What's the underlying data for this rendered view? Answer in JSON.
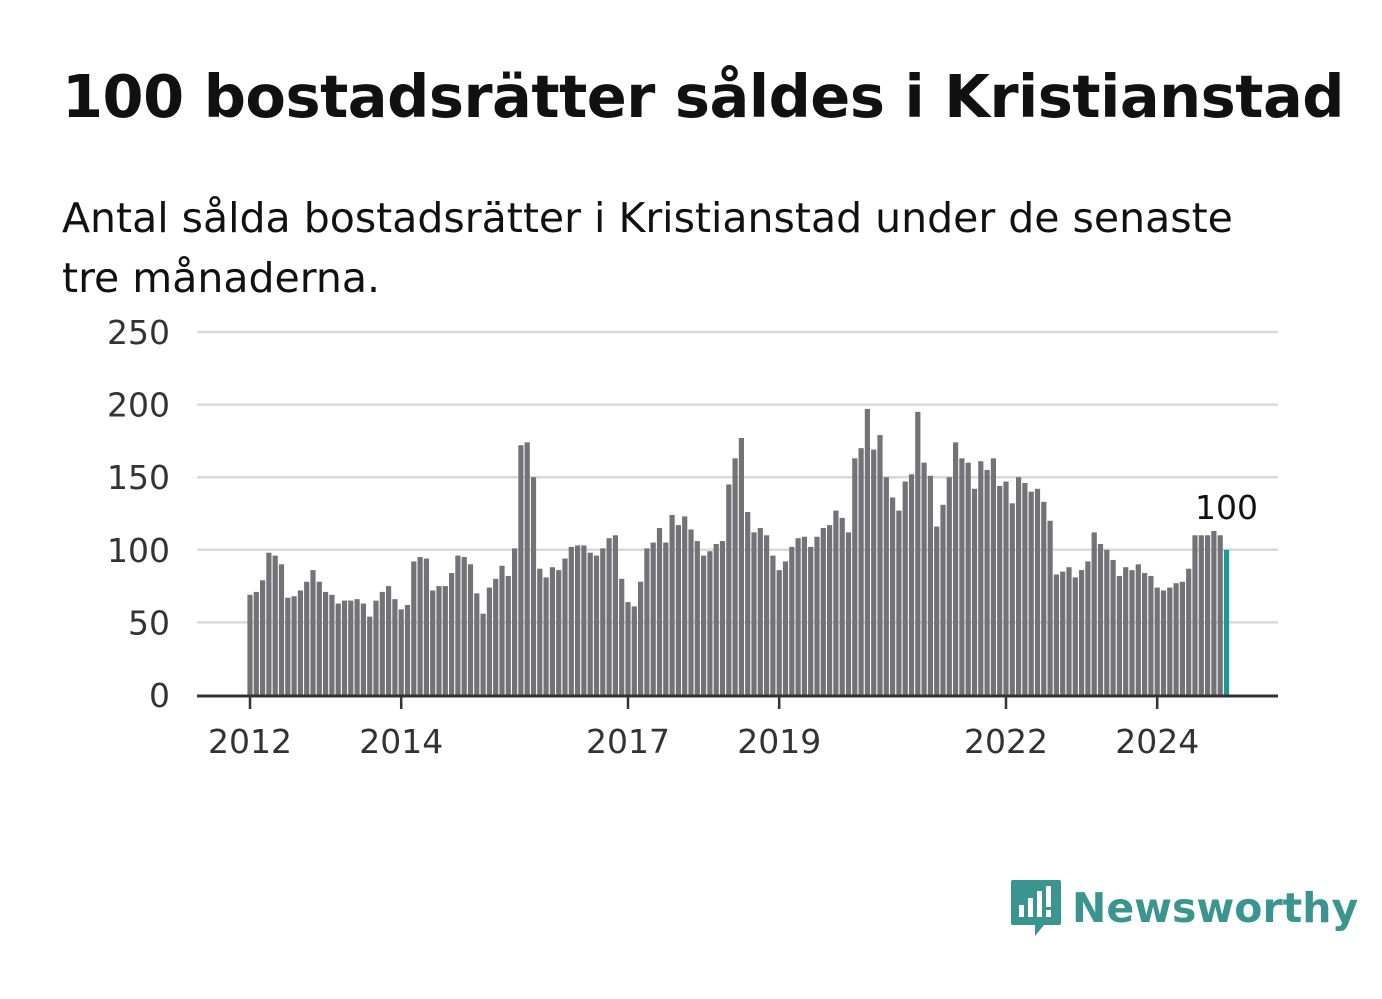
{
  "header": {
    "title": "100 bostadsrätter såldes i Kristianstad",
    "subtitle": "Antal sålda bostadsrätter i Kristianstad under de senaste tre månaderna."
  },
  "brand": {
    "name": "Newsworthy",
    "color": "#3a9490",
    "icon": "newsworthy-logo-icon"
  },
  "chart_data": {
    "type": "bar",
    "title": "100 bostadsrätter såldes i Kristianstad",
    "subtitle": "Antal sålda bostadsrätter i Kristianstad under de senaste tre månaderna.",
    "xlabel": "",
    "ylabel": "",
    "ylim": [
      0,
      250
    ],
    "yticks": [
      0,
      50,
      100,
      150,
      200,
      250
    ],
    "xticks": [
      "2012",
      "2014",
      "2017",
      "2019",
      "2022",
      "2024"
    ],
    "grid": true,
    "legend": "none",
    "bar_color": "#737277",
    "highlight_color": "#1a9a93",
    "start_period": "2012-01",
    "frequency": "monthly",
    "highlight_label": "100",
    "values": [
      69,
      71,
      79,
      98,
      96,
      90,
      67,
      68,
      72,
      78,
      86,
      78,
      71,
      69,
      63,
      65,
      65,
      66,
      63,
      54,
      65,
      71,
      75,
      66,
      59,
      62,
      92,
      95,
      94,
      72,
      75,
      75,
      84,
      96,
      95,
      90,
      70,
      56,
      74,
      80,
      89,
      82,
      101,
      172,
      174,
      150,
      87,
      81,
      88,
      86,
      94,
      102,
      103,
      103,
      98,
      96,
      101,
      108,
      110,
      80,
      64,
      61,
      78,
      101,
      105,
      115,
      105,
      124,
      117,
      123,
      114,
      106,
      96,
      99,
      104,
      106,
      145,
      163,
      177,
      126,
      112,
      115,
      110,
      96,
      86,
      92,
      102,
      108,
      109,
      102,
      109,
      115,
      117,
      127,
      122,
      112,
      163,
      170,
      197,
      169,
      179,
      150,
      136,
      127,
      147,
      152,
      195,
      160,
      151,
      116,
      131,
      150,
      174,
      163,
      160,
      142,
      161,
      155,
      163,
      144,
      147,
      132,
      150,
      146,
      140,
      142,
      133,
      120,
      83,
      85,
      88,
      81,
      86,
      92,
      112,
      104,
      100,
      93,
      82,
      88,
      86,
      90,
      84,
      82,
      74,
      72,
      74,
      77,
      78,
      87,
      110,
      110,
      110,
      113,
      110,
      100
    ]
  }
}
